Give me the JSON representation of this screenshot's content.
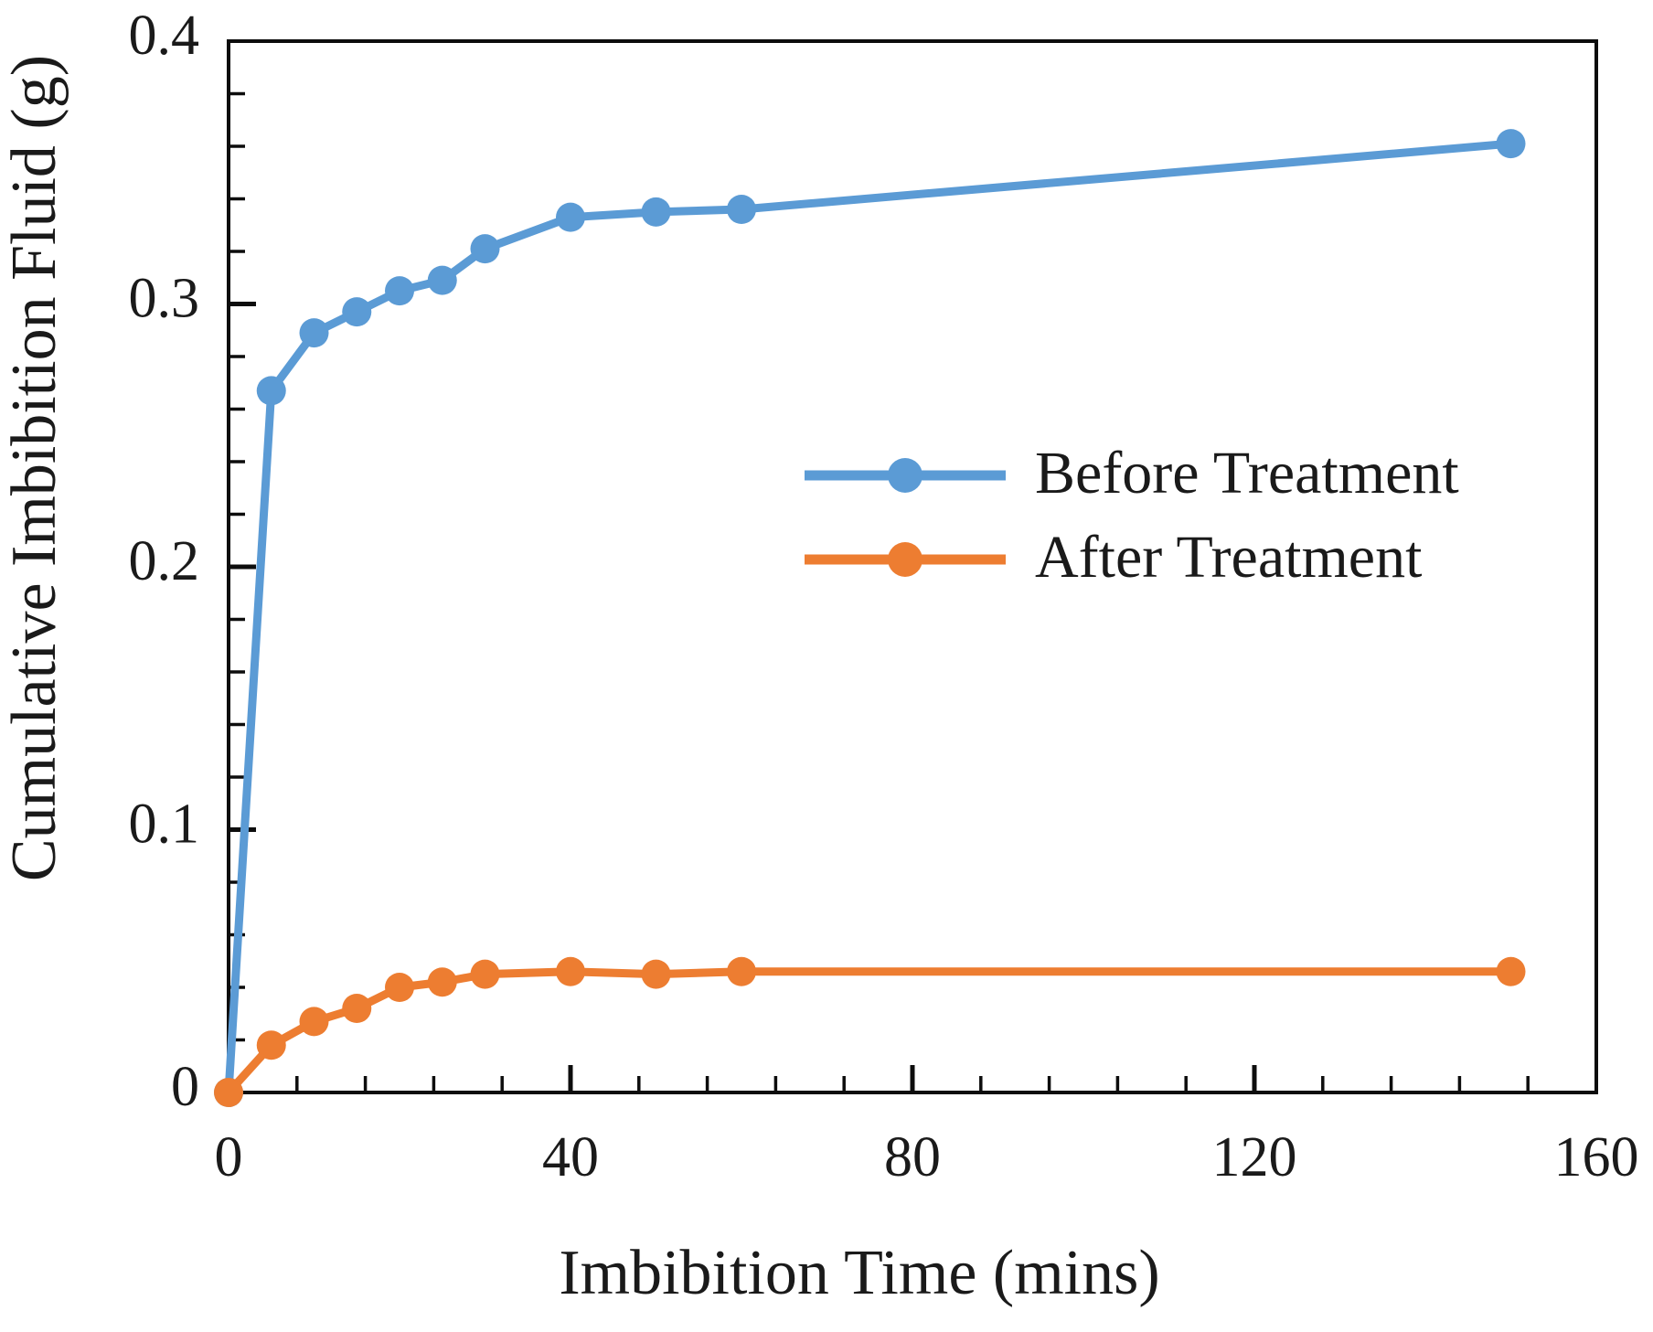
{
  "figure": {
    "background_color": "#ffffff",
    "text_color": "#1a1a1a",
    "axis_color": "#0d0d0d"
  },
  "chart_data": {
    "type": "line",
    "title": "",
    "xlabel": "Imbibition Time (mins)",
    "ylabel": "Cumulative Imbibition Fluid (g)",
    "grid": false,
    "legend_position": "center-right-inside",
    "x_axis": {
      "min": 0,
      "max": 160,
      "major_ticks": [
        0,
        40,
        80,
        120,
        160
      ],
      "major_tick_labels": [
        "0",
        "40",
        "80",
        "120",
        "160"
      ],
      "minor_tick_step": 8,
      "tick_direction": "in"
    },
    "y_axis": {
      "min": 0,
      "max": 0.4,
      "major_ticks": [
        0,
        0.1,
        0.2,
        0.3,
        0.4
      ],
      "major_tick_labels": [
        "0",
        "0.1",
        "0.2",
        "0.3",
        "0.4"
      ],
      "minor_tick_step": 0.02,
      "tick_direction": "in"
    },
    "series": [
      {
        "name": "Before Treatment",
        "color": "#5B9BD5",
        "marker": "circle",
        "points": [
          [
            0,
            0
          ],
          [
            5,
            0.267
          ],
          [
            10,
            0.289
          ],
          [
            15,
            0.297
          ],
          [
            20,
            0.305
          ],
          [
            25,
            0.309
          ],
          [
            30,
            0.321
          ],
          [
            40,
            0.333
          ],
          [
            50,
            0.335
          ],
          [
            60,
            0.336
          ],
          [
            150,
            0.361
          ]
        ]
      },
      {
        "name": "After Treatment",
        "color": "#ED7D31",
        "marker": "circle",
        "points": [
          [
            0,
            0
          ],
          [
            5,
            0.018
          ],
          [
            10,
            0.027
          ],
          [
            15,
            0.032
          ],
          [
            20,
            0.04
          ],
          [
            25,
            0.042
          ],
          [
            30,
            0.045
          ],
          [
            40,
            0.046
          ],
          [
            50,
            0.045
          ],
          [
            60,
            0.046
          ],
          [
            150,
            0.046
          ]
        ]
      }
    ]
  }
}
